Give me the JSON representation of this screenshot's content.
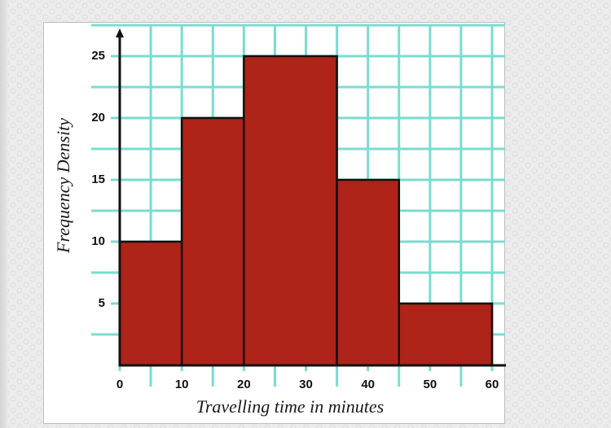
{
  "chart_data": {
    "type": "histogram",
    "title": "",
    "xlabel": "Travelling time in minutes",
    "ylabel": "Frequency Density",
    "bins": [
      {
        "start": 0,
        "end": 10,
        "frequency_density": 10
      },
      {
        "start": 10,
        "end": 20,
        "frequency_density": 20
      },
      {
        "start": 20,
        "end": 35,
        "frequency_density": 25
      },
      {
        "start": 35,
        "end": 45,
        "frequency_density": 15
      },
      {
        "start": 45,
        "end": 60,
        "frequency_density": 5
      }
    ],
    "categories": [
      "0-10",
      "10-20",
      "20-35",
      "35-45",
      "45-60"
    ],
    "values": [
      10,
      20,
      25,
      15,
      5
    ],
    "x_ticks": [
      "0",
      "10",
      "20",
      "30",
      "40",
      "50",
      "60"
    ],
    "y_ticks": [
      "5",
      "10",
      "15",
      "20",
      "25"
    ],
    "xlim": [
      0,
      60
    ],
    "ylim": [
      0,
      27.5
    ],
    "grid": true,
    "colors": {
      "bar_fill": "#AE2418",
      "bar_edge": "#111111",
      "grid": "#7ADCCF",
      "axis": "#111111"
    }
  }
}
